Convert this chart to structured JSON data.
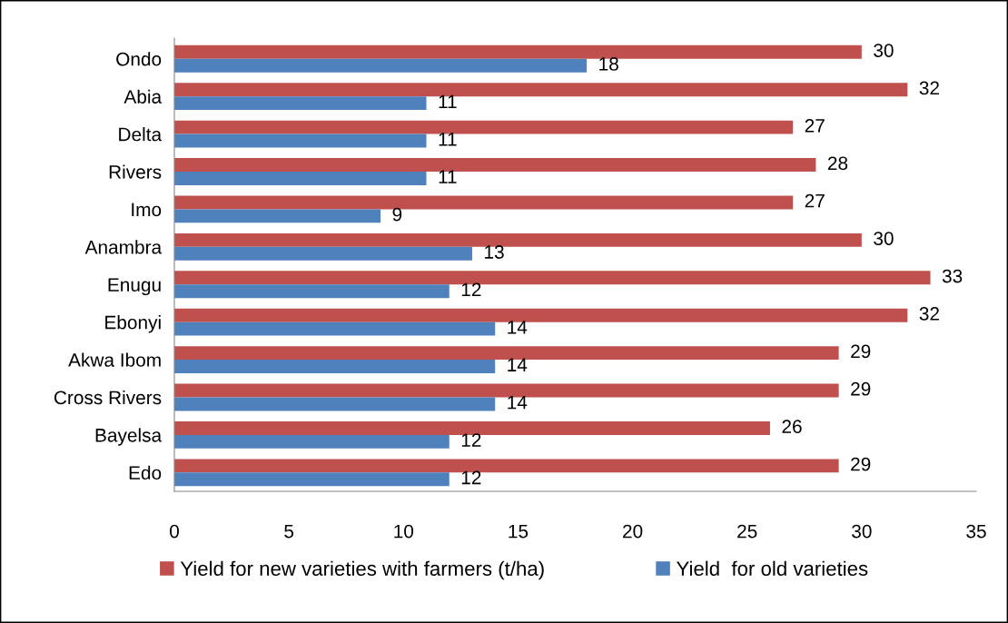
{
  "chart_data": {
    "type": "bar",
    "orientation": "horizontal",
    "categories": [
      "Ondo",
      "Abia",
      "Delta",
      "Rivers",
      "Imo",
      "Anambra",
      "Enugu",
      "Ebonyi",
      "Akwa Ibom",
      "Cross Rivers",
      "Bayelsa",
      "Edo"
    ],
    "series": [
      {
        "name": "Yield for new varieties with farmers (t/ha)",
        "color": "#c0504d",
        "values": [
          30,
          32,
          27,
          28,
          27,
          30,
          33,
          32,
          29,
          29,
          26,
          29
        ]
      },
      {
        "name": "Yield  for old varieties",
        "color": "#4f81bd",
        "values": [
          18,
          11,
          11,
          11,
          9,
          13,
          12,
          14,
          14,
          14,
          12,
          12
        ]
      }
    ],
    "xlim": [
      0,
      35
    ],
    "xticks": [
      0,
      5,
      10,
      15,
      20,
      25,
      30,
      35
    ],
    "data_labels": true,
    "legend": "bottom",
    "grid": false
  }
}
